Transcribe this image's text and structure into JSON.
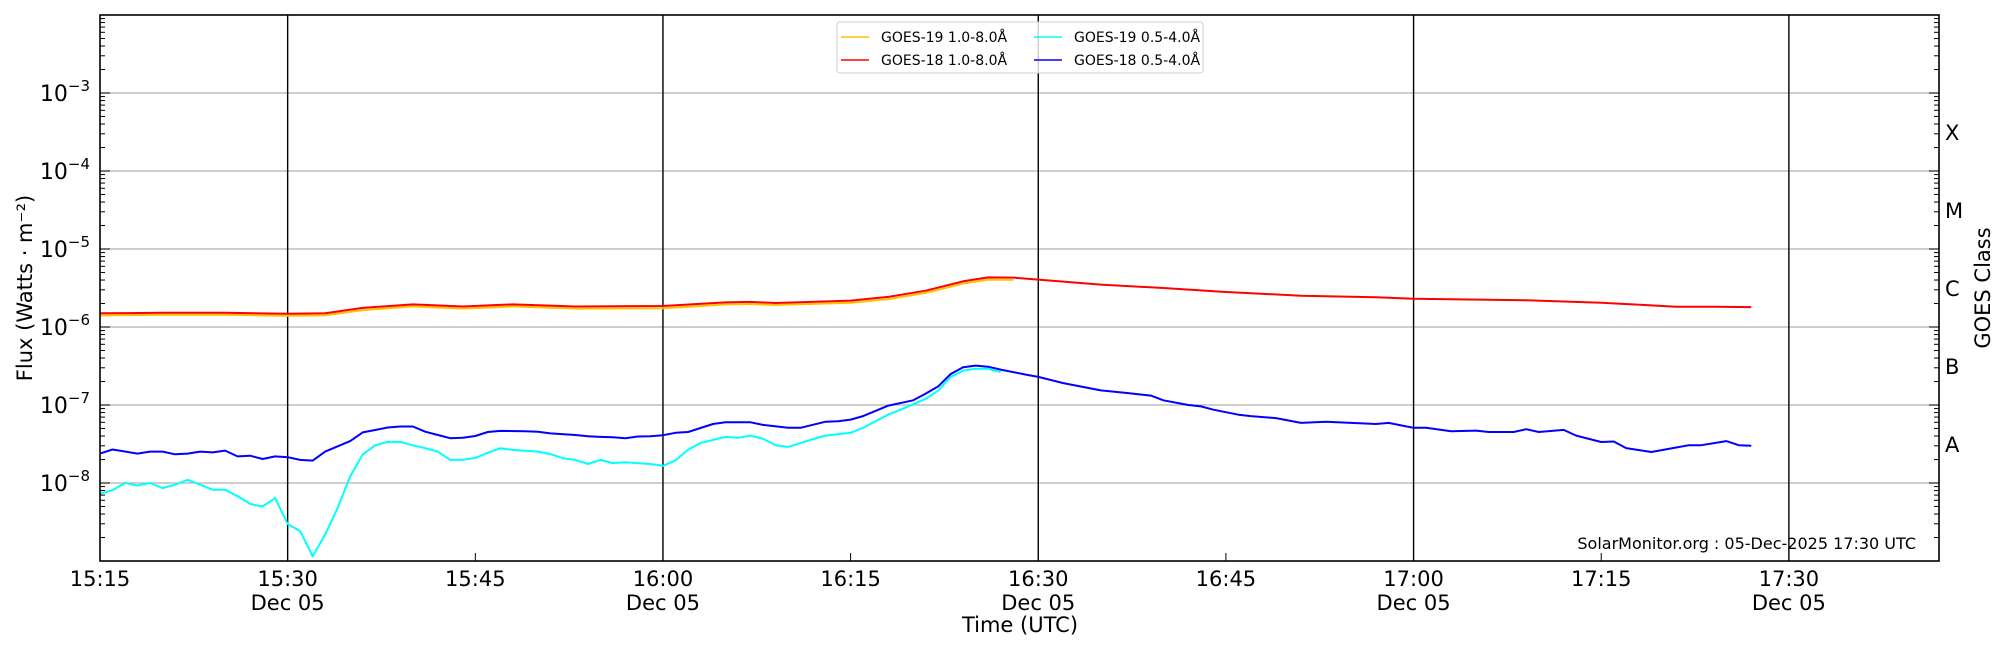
{
  "chart_data": {
    "type": "line",
    "title": "",
    "xlabel": "Time (UTC)",
    "ylabel": "Flux (Watts · m⁻²)",
    "y2label": "GOES Class",
    "yscale": "log",
    "ylim": [
      1e-09,
      0.01
    ],
    "xlim": [
      "15:15",
      "17:42"
    ],
    "date_label": "Dec 05",
    "x_ticks": [
      {
        "label": "15:15",
        "date": ""
      },
      {
        "label": "15:30",
        "date": "Dec 05"
      },
      {
        "label": "15:45",
        "date": ""
      },
      {
        "label": "16:00",
        "date": "Dec 05"
      },
      {
        "label": "16:15",
        "date": ""
      },
      {
        "label": "16:30",
        "date": "Dec 05"
      },
      {
        "label": "16:45",
        "date": ""
      },
      {
        "label": "17:00",
        "date": "Dec 05"
      },
      {
        "label": "17:15",
        "date": ""
      },
      {
        "label": "17:30",
        "date": "Dec 05"
      }
    ],
    "y_ticks": [
      {
        "value": 0.001,
        "base": "10",
        "exp": "−3"
      },
      {
        "value": 0.0001,
        "base": "10",
        "exp": "−4"
      },
      {
        "value": 1e-05,
        "base": "10",
        "exp": "−5"
      },
      {
        "value": 1e-06,
        "base": "10",
        "exp": "−6"
      },
      {
        "value": 1e-07,
        "base": "10",
        "exp": "−7"
      },
      {
        "value": 1e-08,
        "base": "10",
        "exp": "−8"
      }
    ],
    "goes_classes": [
      {
        "label": "X",
        "value": 0.000316
      },
      {
        "label": "M",
        "value": 3.16e-05
      },
      {
        "label": "C",
        "value": 3.16e-06
      },
      {
        "label": "B",
        "value": 3.16e-07
      },
      {
        "label": "A",
        "value": 3.16e-08
      }
    ],
    "grid": true,
    "legend_position": "top-center",
    "watermark": "SolarMonitor.org : 05-Dec-2025 17:30 UTC",
    "series": [
      {
        "name": "GOES-19 1.0-8.0Å",
        "color": "#ffc000",
        "legend_col": 0,
        "points": [
          [
            "15:15",
            1.47e-06
          ],
          [
            "15:20",
            1.5e-06
          ],
          [
            "15:25",
            1.5e-06
          ],
          [
            "15:30",
            1.46e-06
          ],
          [
            "15:33",
            1.48e-06
          ],
          [
            "15:36",
            1.72e-06
          ],
          [
            "15:40",
            1.92e-06
          ],
          [
            "15:44",
            1.8e-06
          ],
          [
            "15:48",
            1.92e-06
          ],
          [
            "15:53",
            1.8e-06
          ],
          [
            "16:00",
            1.82e-06
          ],
          [
            "16:05",
            2.03e-06
          ],
          [
            "16:07",
            2.06e-06
          ],
          [
            "16:09",
            2e-06
          ],
          [
            "16:15",
            2.14e-06
          ],
          [
            "16:18",
            2.38e-06
          ],
          [
            "16:21",
            2.86e-06
          ],
          [
            "16:24",
            3.77e-06
          ],
          [
            "16:26",
            4.24e-06
          ],
          [
            "16:28",
            4.2e-06
          ]
        ]
      },
      {
        "name": "GOES-18 1.0-8.0Å",
        "color": "#ff0000",
        "legend_col": 0,
        "points": [
          [
            "15:15",
            1.5e-06
          ],
          [
            "15:20",
            1.52e-06
          ],
          [
            "15:25",
            1.52e-06
          ],
          [
            "15:30",
            1.48e-06
          ],
          [
            "15:33",
            1.5e-06
          ],
          [
            "15:36",
            1.76e-06
          ],
          [
            "15:40",
            1.95e-06
          ],
          [
            "15:44",
            1.83e-06
          ],
          [
            "15:48",
            1.95e-06
          ],
          [
            "15:53",
            1.83e-06
          ],
          [
            "16:00",
            1.86e-06
          ],
          [
            "16:05",
            2.07e-06
          ],
          [
            "16:07",
            2.1e-06
          ],
          [
            "16:09",
            2.03e-06
          ],
          [
            "16:15",
            2.18e-06
          ],
          [
            "16:18",
            2.43e-06
          ],
          [
            "16:21",
            2.92e-06
          ],
          [
            "16:24",
            3.85e-06
          ],
          [
            "16:26",
            4.33e-06
          ],
          [
            "16:28",
            4.3e-06
          ],
          [
            "16:30",
            4.05e-06
          ],
          [
            "16:35",
            3.5e-06
          ],
          [
            "16:40",
            3.16e-06
          ],
          [
            "16:45",
            2.81e-06
          ],
          [
            "16:51",
            2.52e-06
          ],
          [
            "16:57",
            2.4e-06
          ],
          [
            "17:00",
            2.3e-06
          ],
          [
            "17:09",
            2.2e-06
          ],
          [
            "17:15",
            2.05e-06
          ],
          [
            "17:21",
            1.82e-06
          ],
          [
            "17:24",
            1.82e-06
          ],
          [
            "17:27",
            1.8e-06
          ]
        ]
      },
      {
        "name": "GOES-19 0.5-4.0Å",
        "color": "#00ffff",
        "legend_col": 1,
        "points": [
          [
            "15:15",
            7.3e-09
          ],
          [
            "15:16",
            8.1e-09
          ],
          [
            "15:17",
            1e-08
          ],
          [
            "15:18",
            9.3e-09
          ],
          [
            "15:19",
            1e-08
          ],
          [
            "15:20",
            8.6e-09
          ],
          [
            "15:21",
            9.5e-09
          ],
          [
            "15:22",
            1.1e-08
          ],
          [
            "15:23",
            9.5e-09
          ],
          [
            "15:24",
            8.2e-09
          ],
          [
            "15:25",
            8.2e-09
          ],
          [
            "15:26",
            6.8e-09
          ],
          [
            "15:27",
            5.4e-09
          ],
          [
            "15:28",
            5e-09
          ],
          [
            "15:29",
            6.4e-09
          ],
          [
            "15:30",
            2.98e-09
          ],
          [
            "15:31",
            2.42e-09
          ],
          [
            "15:32",
            1.15e-09
          ],
          [
            "15:33",
            2.19e-09
          ],
          [
            "15:34",
            4.8e-09
          ],
          [
            "15:35",
            1.22e-08
          ],
          [
            "15:36",
            2.32e-08
          ],
          [
            "15:37",
            3.04e-08
          ],
          [
            "15:38",
            3.36e-08
          ],
          [
            "15:39",
            3.36e-08
          ],
          [
            "15:40",
            3.04e-08
          ],
          [
            "15:41",
            2.79e-08
          ],
          [
            "15:42",
            2.53e-08
          ],
          [
            "15:43",
            1.98e-08
          ],
          [
            "15:44",
            1.98e-08
          ],
          [
            "15:45",
            2.1e-08
          ],
          [
            "15:46",
            2.44e-08
          ],
          [
            "15:47",
            2.79e-08
          ],
          [
            "15:48",
            2.66e-08
          ],
          [
            "15:50",
            2.53e-08
          ],
          [
            "15:51",
            2.35e-08
          ],
          [
            "15:52",
            2.08e-08
          ],
          [
            "15:53",
            1.98e-08
          ],
          [
            "15:54",
            1.75e-08
          ],
          [
            "15:55",
            1.98e-08
          ],
          [
            "15:56",
            1.8e-08
          ],
          [
            "15:57",
            1.84e-08
          ],
          [
            "15:59",
            1.75e-08
          ],
          [
            "16:00",
            1.66e-08
          ],
          [
            "16:01",
            1.95e-08
          ],
          [
            "16:02",
            2.67e-08
          ],
          [
            "16:03",
            3.26e-08
          ],
          [
            "16:05",
            3.9e-08
          ],
          [
            "16:06",
            3.8e-08
          ],
          [
            "16:07",
            4.05e-08
          ],
          [
            "16:08",
            3.7e-08
          ],
          [
            "16:09",
            3.04e-08
          ],
          [
            "16:10",
            2.9e-08
          ],
          [
            "16:12",
            3.65e-08
          ],
          [
            "16:13",
            4.05e-08
          ],
          [
            "16:15",
            4.4e-08
          ],
          [
            "16:16",
            5.1e-08
          ],
          [
            "16:18",
            7.5e-08
          ],
          [
            "16:19",
            8.7e-08
          ],
          [
            "16:21",
            1.2e-07
          ],
          [
            "16:22",
            1.53e-07
          ],
          [
            "16:23",
            2.29e-07
          ],
          [
            "16:24",
            2.75e-07
          ],
          [
            "16:25",
            2.92e-07
          ],
          [
            "16:26",
            2.9e-07
          ],
          [
            "16:27",
            2.65e-07
          ]
        ]
      },
      {
        "name": "GOES-18 0.5-4.0Å",
        "color": "#0000ff",
        "legend_col": 1,
        "points": [
          [
            "15:15",
            2.38e-08
          ],
          [
            "15:16",
            2.69e-08
          ],
          [
            "15:18",
            2.38e-08
          ],
          [
            "15:19",
            2.53e-08
          ],
          [
            "15:20",
            2.53e-08
          ],
          [
            "15:21",
            2.33e-08
          ],
          [
            "15:22",
            2.38e-08
          ],
          [
            "15:23",
            2.53e-08
          ],
          [
            "15:24",
            2.47e-08
          ],
          [
            "15:25",
            2.6e-08
          ],
          [
            "15:26",
            2.19e-08
          ],
          [
            "15:27",
            2.24e-08
          ],
          [
            "15:28",
            2.03e-08
          ],
          [
            "15:29",
            2.19e-08
          ],
          [
            "15:30",
            2.14e-08
          ],
          [
            "15:31",
            1.98e-08
          ],
          [
            "15:32",
            1.94e-08
          ],
          [
            "15:33",
            2.53e-08
          ],
          [
            "15:35",
            3.44e-08
          ],
          [
            "15:36",
            4.45e-08
          ],
          [
            "15:37",
            4.78e-08
          ],
          [
            "15:38",
            5.15e-08
          ],
          [
            "15:39",
            5.3e-08
          ],
          [
            "15:40",
            5.3e-08
          ],
          [
            "15:41",
            4.55e-08
          ],
          [
            "15:42",
            4.13e-08
          ],
          [
            "15:43",
            3.75e-08
          ],
          [
            "15:44",
            3.8e-08
          ],
          [
            "15:45",
            4e-08
          ],
          [
            "15:46",
            4.5e-08
          ],
          [
            "15:47",
            4.65e-08
          ],
          [
            "15:49",
            4.6e-08
          ],
          [
            "15:50",
            4.55e-08
          ],
          [
            "15:51",
            4.33e-08
          ],
          [
            "15:53",
            4.13e-08
          ],
          [
            "15:54",
            3.97e-08
          ],
          [
            "15:55",
            3.9e-08
          ],
          [
            "15:56",
            3.85e-08
          ],
          [
            "15:57",
            3.75e-08
          ],
          [
            "15:58",
            3.95e-08
          ],
          [
            "15:59",
            3.97e-08
          ],
          [
            "16:00",
            4.1e-08
          ],
          [
            "16:01",
            4.4e-08
          ],
          [
            "16:02",
            4.5e-08
          ],
          [
            "16:04",
            5.7e-08
          ],
          [
            "16:05",
            6e-08
          ],
          [
            "16:07",
            6e-08
          ],
          [
            "16:08",
            5.55e-08
          ],
          [
            "16:10",
            5.1e-08
          ],
          [
            "16:11",
            5.1e-08
          ],
          [
            "16:13",
            6.1e-08
          ],
          [
            "16:14",
            6.2e-08
          ],
          [
            "16:15",
            6.5e-08
          ],
          [
            "16:16",
            7.2e-08
          ],
          [
            "16:18",
            9.8e-08
          ],
          [
            "16:20",
            1.15e-07
          ],
          [
            "16:21",
            1.4e-07
          ],
          [
            "16:22",
            1.73e-07
          ],
          [
            "16:23",
            2.5e-07
          ],
          [
            "16:24",
            3.04e-07
          ],
          [
            "16:25",
            3.2e-07
          ],
          [
            "16:26",
            3.1e-07
          ],
          [
            "16:27",
            2.84e-07
          ],
          [
            "16:29",
            2.45e-07
          ],
          [
            "16:30",
            2.29e-07
          ],
          [
            "16:32",
            1.91e-07
          ],
          [
            "16:35",
            1.54e-07
          ],
          [
            "16:37",
            1.43e-07
          ],
          [
            "16:39",
            1.32e-07
          ],
          [
            "16:40",
            1.15e-07
          ],
          [
            "16:42",
            1e-07
          ],
          [
            "16:43",
            9.6e-08
          ],
          [
            "16:44",
            8.7e-08
          ],
          [
            "16:46",
            7.5e-08
          ],
          [
            "16:47",
            7.2e-08
          ],
          [
            "16:49",
            6.8e-08
          ],
          [
            "16:51",
            5.9e-08
          ],
          [
            "16:53",
            6.1e-08
          ],
          [
            "16:57",
            5.7e-08
          ],
          [
            "16:58",
            5.9e-08
          ],
          [
            "17:00",
            5.1e-08
          ],
          [
            "17:01",
            5.1e-08
          ],
          [
            "17:03",
            4.6e-08
          ],
          [
            "17:05",
            4.7e-08
          ],
          [
            "17:06",
            4.5e-08
          ],
          [
            "17:08",
            4.5e-08
          ],
          [
            "17:09",
            4.9e-08
          ],
          [
            "17:10",
            4.5e-08
          ],
          [
            "17:12",
            4.8e-08
          ],
          [
            "17:13",
            4.05e-08
          ],
          [
            "17:15",
            3.35e-08
          ],
          [
            "17:16",
            3.4e-08
          ],
          [
            "17:17",
            2.8e-08
          ],
          [
            "17:19",
            2.5e-08
          ],
          [
            "17:21",
            2.85e-08
          ],
          [
            "17:22",
            3.05e-08
          ],
          [
            "17:23",
            3.05e-08
          ],
          [
            "17:25",
            3.45e-08
          ],
          [
            "17:26",
            3.05e-08
          ],
          [
            "17:27",
            3e-08
          ]
        ]
      }
    ]
  }
}
